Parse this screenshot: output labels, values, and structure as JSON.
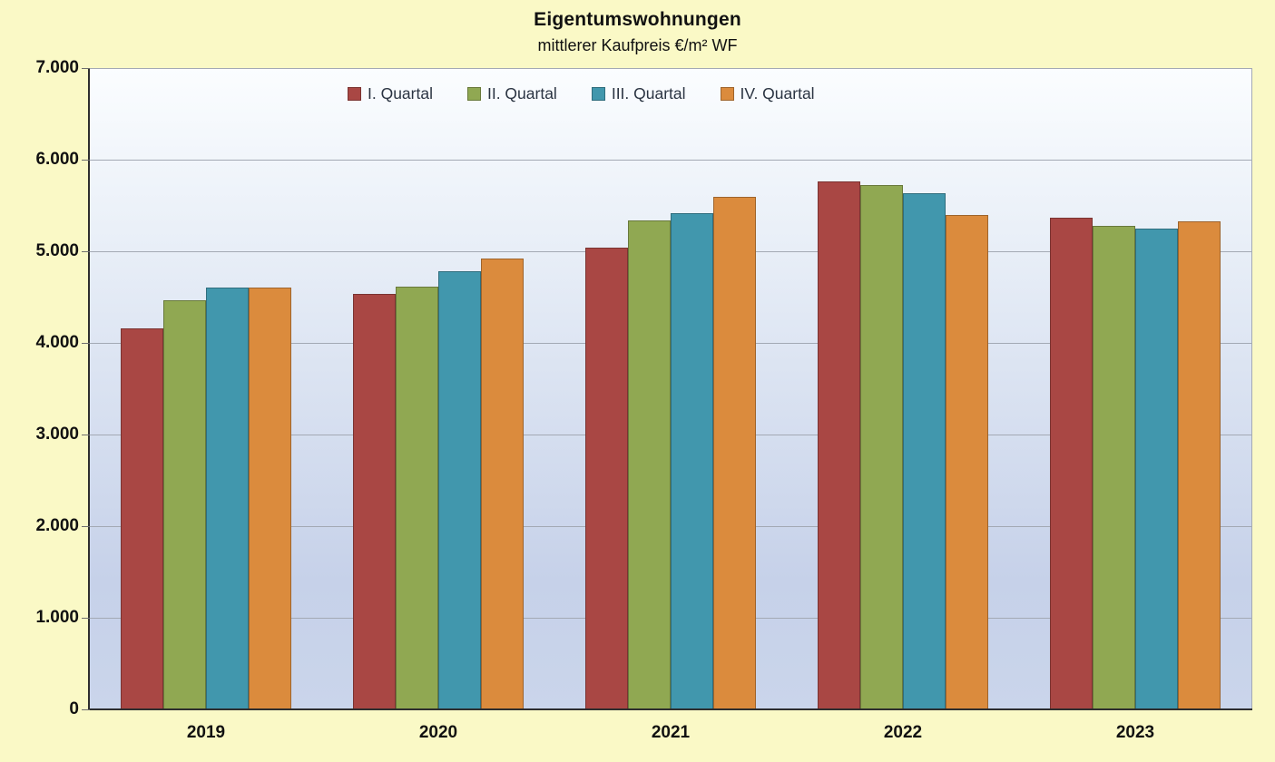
{
  "header": {
    "title": "Eigentumswohnungen",
    "subtitle": "mittlerer Kaufpreis €/m² WF"
  },
  "chart_data": {
    "type": "bar",
    "title": "Eigentumswohnungen",
    "subtitle": "mittlerer Kaufpreis €/m² WF",
    "categories": [
      "2019",
      "2020",
      "2021",
      "2022",
      "2023"
    ],
    "series": [
      {
        "name": "I. Quartal",
        "color": "#A94744",
        "values": [
          4160,
          4530,
          5040,
          5760,
          5370
        ]
      },
      {
        "name": "II. Quartal",
        "color": "#90A852",
        "values": [
          4470,
          4610,
          5340,
          5720,
          5280
        ]
      },
      {
        "name": "III. Quartal",
        "color": "#4197AD",
        "values": [
          4600,
          4780,
          5420,
          5630,
          5250
        ]
      },
      {
        "name": "IV. Quartal",
        "color": "#DB8B3D",
        "values": [
          4600,
          4920,
          5590,
          5400,
          5330
        ]
      }
    ],
    "ylim": [
      0,
      7000
    ],
    "ytick_step": 1000,
    "ytick_labels": [
      "0",
      "1.000",
      "2.000",
      "3.000",
      "4.000",
      "5.000",
      "6.000",
      "7.000"
    ],
    "grid": true,
    "legend_position": "top-inside"
  },
  "colors": {
    "page_background": "#FAF9C6",
    "plot_gradient_top": "#FBFDFF",
    "plot_gradient_upper": "#EAF0F8",
    "plot_gradient_lower": "#C6D1E9",
    "plot_gradient_bottom": "#CAD5EB",
    "gridline": "#A3A9B4",
    "axis_line": "#2E2E2E",
    "tick": "#6E6E6E",
    "label_text": "#111111",
    "legend_text": "#2B3442"
  }
}
